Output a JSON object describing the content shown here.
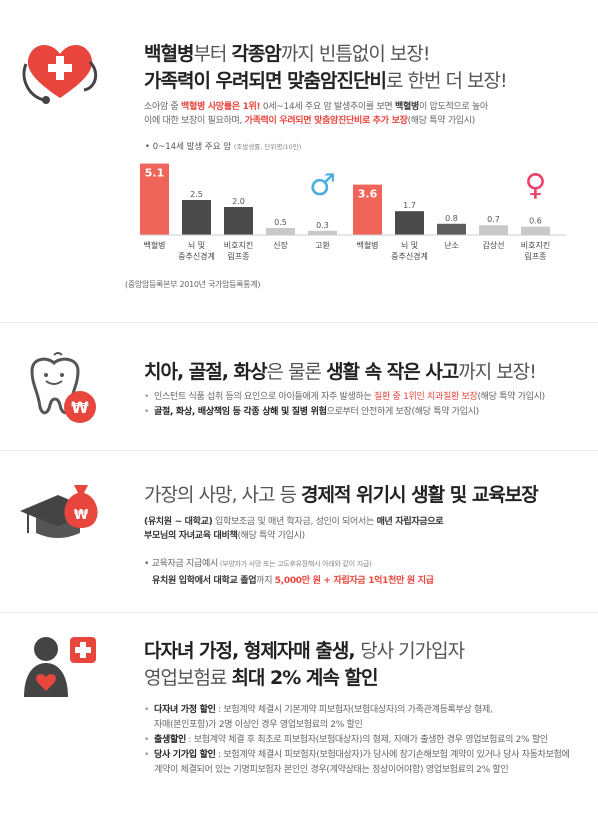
{
  "section1": {
    "title_line1": [
      {
        "t": "백혈병",
        "s": "b"
      },
      {
        "t": "부터 ",
        "s": "lt"
      },
      {
        "t": "각종암",
        "s": "b"
      },
      {
        "t": "까지 빈틈없이 보장!",
        "s": "lt"
      }
    ],
    "title_line2": [
      {
        "t": "가족력이 우려되면 맞춤암진단비",
        "s": "b"
      },
      {
        "t": "로 한번 더 보장!",
        "s": "lt"
      }
    ],
    "desc_line1": [
      {
        "t": "소아암 중 ",
        "s": "n"
      },
      {
        "t": "백혈병 사망률은 1위!",
        "s": "red"
      },
      {
        "t": " 0세~14세 주요 암 발생추이를 보면 ",
        "s": "n"
      },
      {
        "t": "백혈병",
        "s": "b"
      },
      {
        "t": "이 압도적으로 높아",
        "s": "n"
      }
    ],
    "desc_line2": [
      {
        "t": "이에 대한 보장이 필요하며, ",
        "s": "n"
      },
      {
        "t": "가족력이 우려되면 맞춤암진단비로 추가 보장",
        "s": "red"
      },
      {
        "t": "(해당 특약 가입시)",
        "s": "n"
      }
    ],
    "source": "(중앙암등록본부 2010년 국가암등록통계)"
  },
  "chart_data": {
    "type": "bar",
    "title": "0~14세 발생 주요 암",
    "subtitle": "(조발생률, 단위명/10만)",
    "groups": [
      {
        "name": "male",
        "symbol": "♂",
        "categories": [
          "백혈병",
          "뇌 및 중추신경계",
          "비호지킨 림프종",
          "신장",
          "고환"
        ],
        "values": [
          5.1,
          2.5,
          2.0,
          0.5,
          0.3
        ]
      },
      {
        "name": "female",
        "symbol": "♀",
        "categories": [
          "백혈병",
          "뇌 및 중추신경계",
          "난소",
          "갑상선",
          "비호지킨 림프종"
        ],
        "values": [
          3.6,
          1.7,
          0.8,
          0.7,
          0.6
        ]
      }
    ],
    "category_lines": {
      "뇌 및 중추신경계": [
        "뇌 및",
        "중추신경계"
      ],
      "비호지킨 림프종": [
        "비호지킨",
        "림프종"
      ]
    },
    "ylim": [
      0,
      5.5
    ],
    "colors": {
      "highlight": "#f0655a",
      "high": "#4a4a4a",
      "mid": "#5e5e5e",
      "low": "#c9c9c9",
      "male": "#4aaee0",
      "female": "#e8456b"
    }
  },
  "section2": {
    "title": [
      {
        "t": "치아, 골절, 화상",
        "s": "b"
      },
      {
        "t": "은 물론 ",
        "s": "lt"
      },
      {
        "t": "생활 속 작은 사고",
        "s": "b"
      },
      {
        "t": "까지 보장!",
        "s": "lt"
      }
    ],
    "bullets": [
      [
        {
          "t": "인스턴트 식품 섭취 등의 요인으로 아이들에게 자주 발생하는 ",
          "s": "n"
        },
        {
          "t": "질환 중 1위인 치과질환 보장",
          "s": "red"
        },
        {
          "t": "(해당 특약 가입시)",
          "s": "n"
        }
      ],
      [
        {
          "t": "골절, 화상, 배상책임 등 각종 상해 및 질병 위험",
          "s": "b"
        },
        {
          "t": "으로부터 안전하게 보장(해당 특약 가입시)",
          "s": "n"
        }
      ]
    ]
  },
  "section3": {
    "title": [
      {
        "t": "가장의 사망, 사고 등 ",
        "s": "lt"
      },
      {
        "t": "경제적 위기시 생활 및 교육보장",
        "s": "b"
      }
    ],
    "desc_line1": [
      {
        "t": "(유치원 ~ 대학교)",
        "s": "b"
      },
      {
        "t": " 입학보조금 및 매년 학자금, 성인이 되어서는 ",
        "s": "n"
      },
      {
        "t": "매년 자립자금으로",
        "s": "b"
      }
    ],
    "desc_line2": [
      {
        "t": "부모님의 자녀교육 대비책",
        "s": "b"
      },
      {
        "t": "(해당 특약 가입시)",
        "s": "n"
      }
    ],
    "example_line1": [
      {
        "t": "교육자금 지급예시",
        "s": "n"
      },
      {
        "t": " (부양자가 사망 또는 고도후유장해시 아래와 같이 지급)",
        "s": "sm"
      }
    ],
    "example_line2": [
      {
        "t": "유치원 입학에서 대학교 졸업",
        "s": "b"
      },
      {
        "t": "까지 ",
        "s": "n"
      },
      {
        "t": "5,000만 원 + 자립자금 1억1천만 원 지급",
        "s": "red"
      }
    ]
  },
  "section4": {
    "title_line1": [
      {
        "t": "다자녀 가정, 형제자매 출생, ",
        "s": "b"
      },
      {
        "t": "당사 기가입자",
        "s": "lt"
      }
    ],
    "title_line2": [
      {
        "t": "영업보험료 ",
        "s": "lt"
      },
      {
        "t": "최대 2% 계속 할인",
        "s": "b"
      }
    ],
    "bullets": [
      [
        {
          "t": "다자녀 가정 할인",
          "s": "b"
        },
        {
          "t": " : 보험계약 체결시 기본계약 피보험자(보험대상자)의 가족관계등록부상 형제,",
          "s": "n"
        }
      ],
      [
        {
          "t": "   자매(본인포함)가 2명 이상인 경우 영업보험료의 2% 할인",
          "s": "n"
        }
      ],
      [
        {
          "t": "출생할인",
          "s": "b"
        },
        {
          "t": " : 보험계약 체결 후 최초로 피보험자(보험대상자)의 형제, 자매가 출생한 경우 영업보험료의 2% 할인",
          "s": "n"
        }
      ],
      [
        {
          "t": "당사 기가입 할인",
          "s": "b"
        },
        {
          "t": " : 보험계약 체결시 피보험자(보험대상자)가 당사에 장기손해보험 계약이 있거나 당사 자동차보험에",
          "s": "n"
        }
      ],
      [
        {
          "t": "   계약이 체결되어 있는 기명피보험자 본인인 경우(계약상태는 정상이어야함) 영업보험료의 2% 할인",
          "s": "n"
        }
      ]
    ]
  }
}
